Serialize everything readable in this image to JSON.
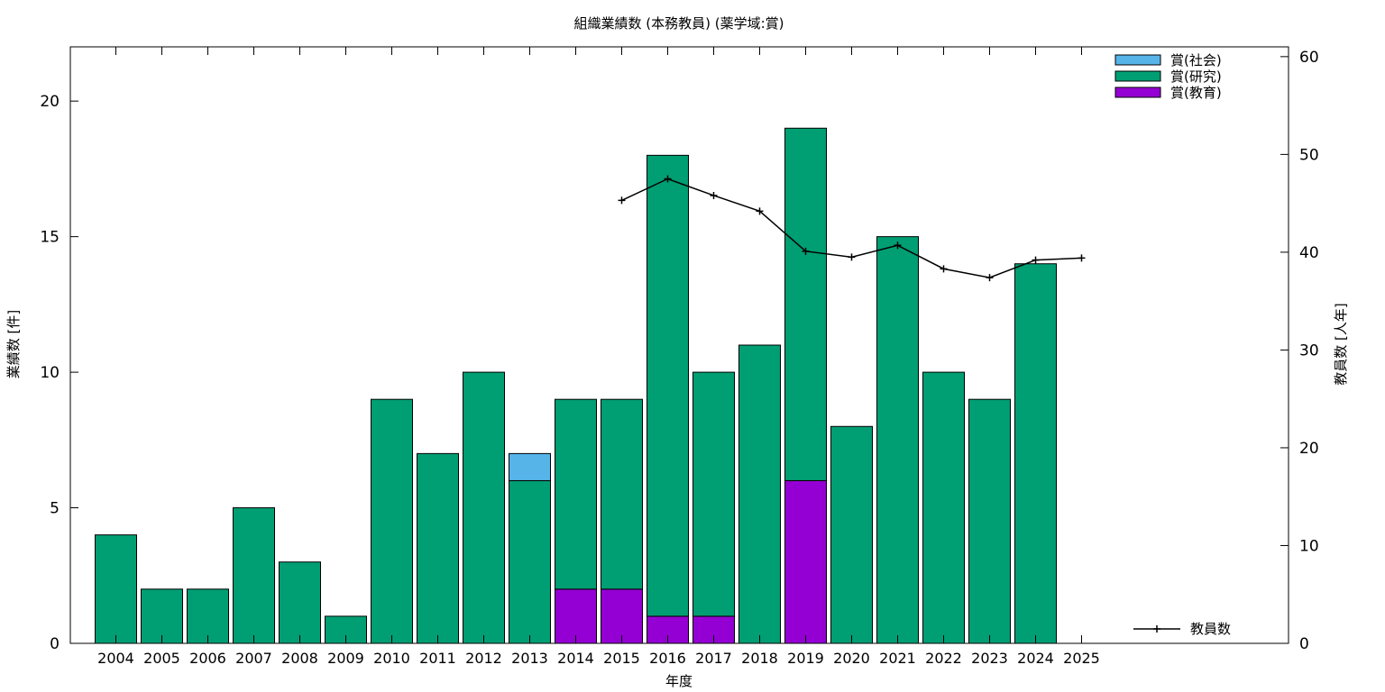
{
  "chart_data": {
    "type": "bar",
    "title": "組織業績数 (本務教員) (薬学域:賞)",
    "xlabel": "年度",
    "ylabel": "業績数 [件]",
    "y2label": "教員数 [人年]",
    "ylim": [
      0,
      22
    ],
    "y2lim": [
      0,
      61
    ],
    "yticks": [
      0,
      5,
      10,
      15,
      20
    ],
    "y2ticks": [
      0,
      10,
      20,
      30,
      40,
      50,
      60
    ],
    "categories": [
      "2004",
      "2005",
      "2006",
      "2007",
      "2008",
      "2009",
      "2010",
      "2011",
      "2012",
      "2013",
      "2014",
      "2015",
      "2016",
      "2017",
      "2018",
      "2019",
      "2020",
      "2021",
      "2022",
      "2023",
      "2024",
      "2025"
    ],
    "stacked": true,
    "series": [
      {
        "name": "賞(教育)",
        "color": "#9400d3",
        "values": [
          0,
          0,
          0,
          0,
          0,
          0,
          0,
          0,
          0,
          0,
          2,
          2,
          1,
          1,
          0,
          6,
          0,
          0,
          0,
          0,
          0,
          0
        ]
      },
      {
        "name": "賞(研究)",
        "color": "#009e73",
        "values": [
          4,
          2,
          2,
          5,
          3,
          1,
          9,
          7,
          10,
          6,
          7,
          7,
          17,
          9,
          11,
          13,
          8,
          15,
          10,
          9,
          14,
          0
        ]
      },
      {
        "name": "賞(社会)",
        "color": "#56b4e9",
        "values": [
          0,
          0,
          0,
          0,
          0,
          0,
          0,
          0,
          0,
          1,
          0,
          0,
          0,
          0,
          0,
          0,
          0,
          0,
          0,
          0,
          0,
          0
        ]
      }
    ],
    "line_series": {
      "name": "教員数",
      "axis": "y2",
      "color": "#000000",
      "x": [
        "2015",
        "2016",
        "2017",
        "2018",
        "2019",
        "2020",
        "2021",
        "2022",
        "2023",
        "2024",
        "2025"
      ],
      "values": [
        45.3,
        47.5,
        45.8,
        44.2,
        40.1,
        39.5,
        40.7,
        38.3,
        37.4,
        39.2,
        39.4
      ]
    },
    "legend_position": "top-right",
    "line_legend_position": "bottom-right",
    "grid": false
  }
}
